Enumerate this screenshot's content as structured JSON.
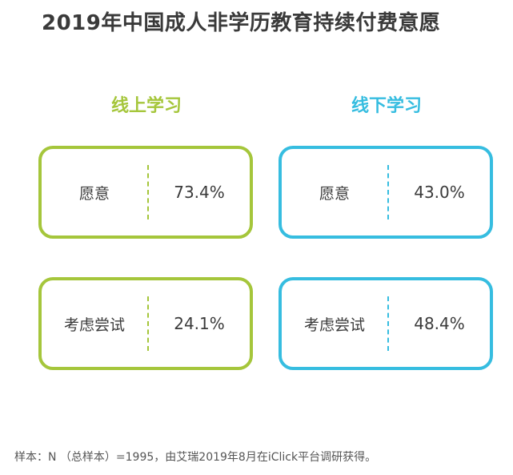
{
  "title": "2019年中国成人非学历教育持续付费意愿",
  "colors": {
    "online": "#a5c63b",
    "offline": "#36bde0"
  },
  "chart_data": {
    "type": "table",
    "title": "2019年中国成人非学历教育持续付费意愿",
    "groups": [
      {
        "name": "线上学习",
        "color": "#a5c63b",
        "rows": [
          {
            "label": "愿意",
            "value": "73.4%"
          },
          {
            "label": "考虑尝试",
            "value": "24.1%"
          }
        ]
      },
      {
        "name": "线下学习",
        "color": "#36bde0",
        "rows": [
          {
            "label": "愿意",
            "value": "43.0%"
          },
          {
            "label": "考虑尝试",
            "value": "48.4%"
          }
        ]
      }
    ]
  },
  "footnote": "样本：N （总样本）=1995，由艾瑞2019年8月在iClick平台调研获得。"
}
